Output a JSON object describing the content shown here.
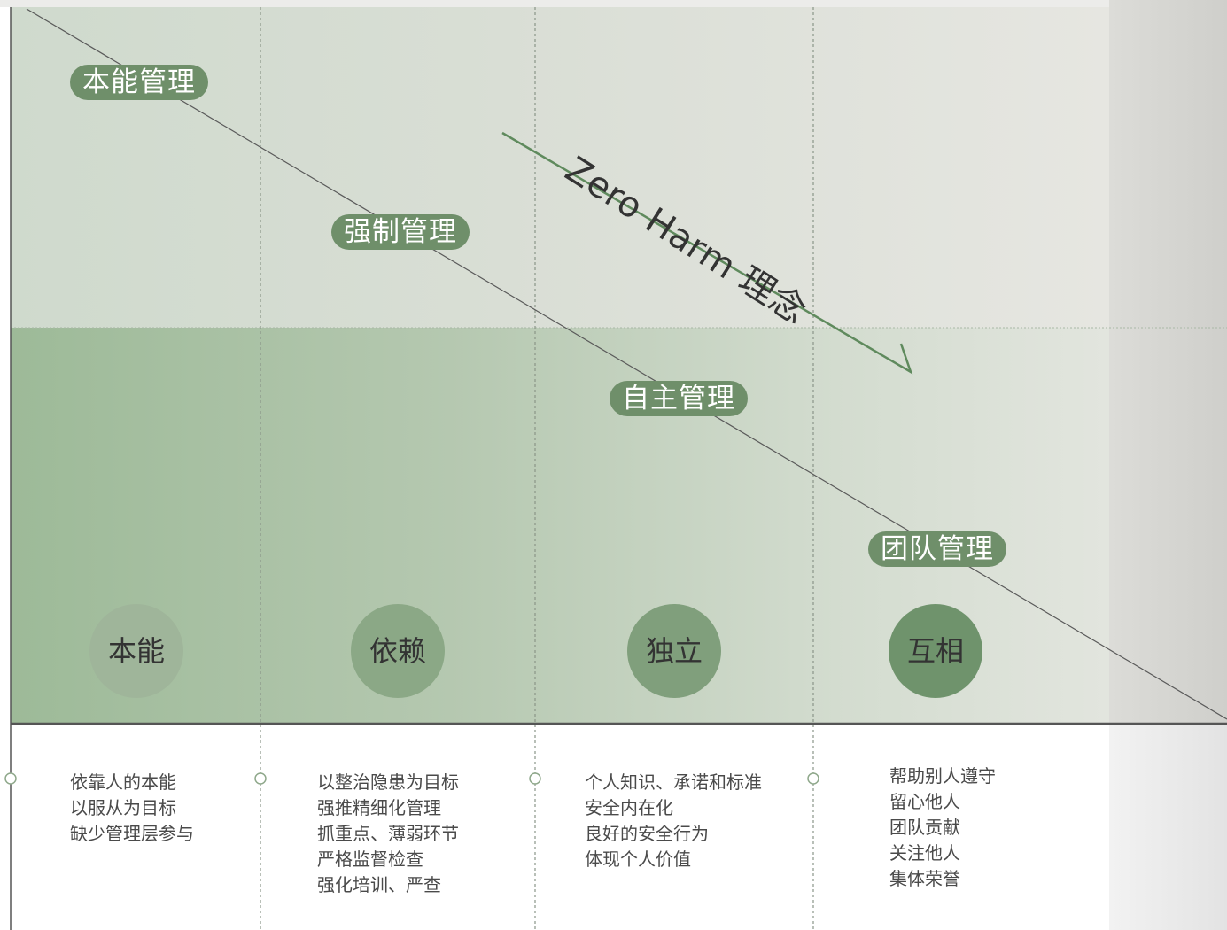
{
  "diagram": {
    "zero_harm_label": "Zero Harm 理念",
    "management_stages": [
      {
        "label": "本能管理"
      },
      {
        "label": "强制管理"
      },
      {
        "label": "自主管理"
      },
      {
        "label": "团队管理"
      }
    ],
    "phases": [
      {
        "label": "本能",
        "fill": "#9fb59a"
      },
      {
        "label": "依赖",
        "fill": "#8ba886"
      },
      {
        "label": "独立",
        "fill": "#809f7c"
      },
      {
        "label": "互相",
        "fill": "#6f936c"
      }
    ],
    "descriptions": [
      {
        "lines": [
          "依靠人的本能",
          "以服从为目标",
          "缺少管理层参与"
        ]
      },
      {
        "lines": [
          "以整治隐患为目标",
          "强推精细化管理",
          "抓重点、薄弱环节",
          "严格监督检查",
          "强化培训、严查"
        ]
      },
      {
        "lines": [
          "个人知识、承诺和标准",
          "安全内在化",
          "良好的安全行为",
          "体现个人价值"
        ]
      },
      {
        "lines": [
          "帮助别人遵守",
          "留心他人",
          "团队贡献",
          "关注他人",
          "集体荣誉"
        ]
      }
    ],
    "colors": {
      "upper_band": "#d6ddd2",
      "lower_band": "#a3bc9f",
      "pill": "#6f8f6a",
      "arrow": "#5f8a5d"
    }
  }
}
